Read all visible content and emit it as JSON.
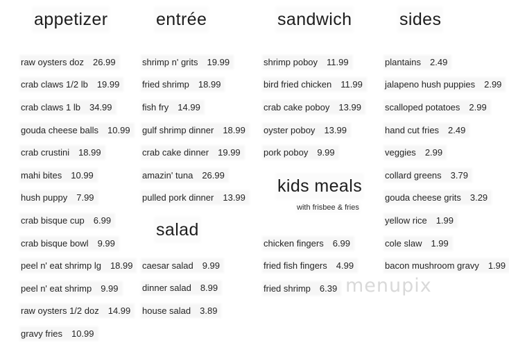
{
  "colors": {
    "text": "#242424",
    "background": "#ffffff",
    "watermark": "#d9d9d9"
  },
  "watermark": {
    "text": "menupix"
  },
  "sections": {
    "appetizer": {
      "title": "appetizer",
      "items": [
        {
          "name": "raw oysters doz",
          "price": "26.99"
        },
        {
          "name": "crab claws 1/2 lb",
          "price": "19.99"
        },
        {
          "name": "crab claws 1 lb",
          "price": "34.99"
        },
        {
          "name": "gouda cheese balls",
          "price": "10.99"
        },
        {
          "name": "crab crustini",
          "price": "18.99"
        },
        {
          "name": "mahi bites",
          "price": "10.99"
        },
        {
          "name": "hush puppy",
          "price": "7.99"
        },
        {
          "name": "crab bisque cup",
          "price": "6.99"
        },
        {
          "name": "crab bisque bowl",
          "price": "9.99"
        },
        {
          "name": "peel n' eat shrimp lg",
          "price": "18.99"
        },
        {
          "name": "peel n' eat shrimp",
          "price": "9.99"
        },
        {
          "name": "raw oysters 1/2 doz",
          "price": "14.99"
        },
        {
          "name": "gravy fries",
          "price": "10.99"
        }
      ]
    },
    "entree": {
      "title": "entrée",
      "items": [
        {
          "name": "shrimp n' grits",
          "price": "19.99"
        },
        {
          "name": "fried shrimp",
          "price": "18.99"
        },
        {
          "name": "fish fry",
          "price": "14.99"
        },
        {
          "name": "gulf shrimp dinner",
          "price": "18.99"
        },
        {
          "name": "crab cake dinner",
          "price": "19.99"
        },
        {
          "name": "amazin' tuna",
          "price": "26.99"
        },
        {
          "name": "pulled pork dinner",
          "price": "13.99"
        }
      ]
    },
    "salad": {
      "title": "salad",
      "items": [
        {
          "name": "caesar salad",
          "price": "9.99"
        },
        {
          "name": "dinner salad",
          "price": "8.99"
        },
        {
          "name": "house salad",
          "price": "3.89"
        }
      ]
    },
    "sandwich": {
      "title": "sandwich",
      "items": [
        {
          "name": "shrimp poboy",
          "price": "11.99"
        },
        {
          "name": "bird fried chicken",
          "price": "11.99"
        },
        {
          "name": "crab cake poboy",
          "price": "13.99"
        },
        {
          "name": "oyster poboy",
          "price": "13.99"
        },
        {
          "name": "pork poboy",
          "price": "9.99"
        }
      ]
    },
    "kids": {
      "title": "kids meals",
      "note": "with frisbee & fries",
      "items": [
        {
          "name": "chicken fingers",
          "price": "6.99"
        },
        {
          "name": "fried fish fingers",
          "price": "4.99"
        },
        {
          "name": "fried shrimp",
          "price": "6.39"
        }
      ]
    },
    "sides": {
      "title": "sides",
      "items": [
        {
          "name": "plantains",
          "price": "2.49"
        },
        {
          "name": "jalapeno hush puppies",
          "price": "2.99"
        },
        {
          "name": "scalloped potatoes",
          "price": "2.99"
        },
        {
          "name": "hand cut fries",
          "price": "2.49"
        },
        {
          "name": "veggies",
          "price": "2.99"
        },
        {
          "name": "collard greens",
          "price": "3.79"
        },
        {
          "name": "gouda cheese grits",
          "price": "3.29"
        },
        {
          "name": "yellow rice",
          "price": "1.99"
        },
        {
          "name": "cole slaw",
          "price": "1.99"
        },
        {
          "name": "bacon mushroom gravy",
          "price": "1.99"
        }
      ]
    }
  }
}
